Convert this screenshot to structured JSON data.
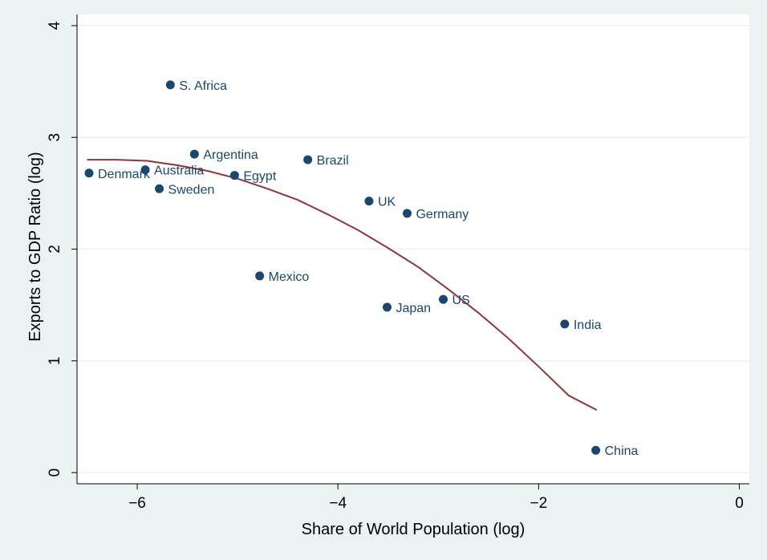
{
  "chart_data": {
    "type": "scatter",
    "title": "",
    "xlabel": "Share of World Population (log)",
    "ylabel": "Exports to GDP Ratio (log)",
    "xlim": [
      -6.6,
      0.1
    ],
    "ylim": [
      -0.1,
      4.1
    ],
    "xticks": [
      -6,
      -4,
      -2,
      0
    ],
    "yticks": [
      0,
      1,
      2,
      3,
      4
    ],
    "grid": true,
    "legend": "none",
    "colors": {
      "background": "#eaf2f3",
      "plot_area": "#ffffff",
      "gridline": "#eaf2f3",
      "marker": "#1a476f",
      "fit_line": "#90353b"
    },
    "points": [
      {
        "label": "S. Africa",
        "x": -5.67,
        "y": 3.47
      },
      {
        "label": "Argentina",
        "x": -5.43,
        "y": 2.85
      },
      {
        "label": "Brazil",
        "x": -4.3,
        "y": 2.8
      },
      {
        "label": "Denmark",
        "x": -6.48,
        "y": 2.68
      },
      {
        "label": "Australia",
        "x": -5.92,
        "y": 2.71
      },
      {
        "label": "Egypt",
        "x": -5.03,
        "y": 2.66
      },
      {
        "label": "Sweden",
        "x": -5.78,
        "y": 2.54
      },
      {
        "label": "UK",
        "x": -3.69,
        "y": 2.43
      },
      {
        "label": "Germany",
        "x": -3.31,
        "y": 2.32
      },
      {
        "label": "Mexico",
        "x": -4.78,
        "y": 1.76
      },
      {
        "label": "US",
        "x": -2.95,
        "y": 1.55
      },
      {
        "label": "Japan",
        "x": -3.51,
        "y": 1.48
      },
      {
        "label": "India",
        "x": -1.74,
        "y": 1.33
      },
      {
        "label": "China",
        "x": -1.43,
        "y": 0.2
      }
    ],
    "fit_line": {
      "type": "quadratic",
      "x": [
        -6.5,
        -6.2,
        -5.9,
        -5.6,
        -5.3,
        -5.0,
        -4.7,
        -4.4,
        -4.1,
        -3.8,
        -3.5,
        -3.2,
        -2.9,
        -2.6,
        -2.3,
        -2.0,
        -1.7,
        -1.42
      ],
      "y": [
        2.8,
        2.8,
        2.79,
        2.75,
        2.7,
        2.63,
        2.54,
        2.44,
        2.31,
        2.17,
        2.01,
        1.84,
        1.64,
        1.43,
        1.2,
        0.95,
        0.69,
        0.56
      ]
    }
  }
}
